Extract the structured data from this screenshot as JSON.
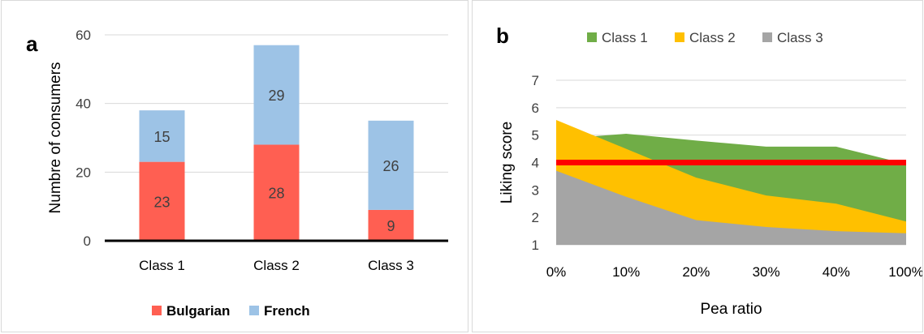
{
  "chart_data": [
    {
      "panel_label": "a",
      "type": "bar",
      "stacked": true,
      "categories": [
        "Class 1",
        "Class 2",
        "Class 3"
      ],
      "series": [
        {
          "name": "Bulgarian",
          "values": [
            23,
            28,
            9
          ],
          "color": "#ff5f52"
        },
        {
          "name": "French",
          "values": [
            15,
            29,
            26
          ],
          "color": "#9dc3e6"
        }
      ],
      "ylabel": "Numbre of consumers",
      "ylim": [
        0,
        60
      ],
      "yticks": [
        0,
        20,
        40,
        60
      ],
      "grid": true,
      "legend_position": "bottom"
    },
    {
      "panel_label": "b",
      "type": "area",
      "x": [
        "0%",
        "10%",
        "20%",
        "30%",
        "40%",
        "100%"
      ],
      "series": [
        {
          "name": "Class 1",
          "values": [
            4.85,
            5.05,
            4.8,
            4.58,
            4.58,
            3.95
          ],
          "color": "#70ad47"
        },
        {
          "name": "Class 2",
          "values": [
            5.55,
            4.5,
            3.45,
            2.8,
            2.5,
            1.85
          ],
          "color": "#ffc000"
        },
        {
          "name": "Class 3",
          "values": [
            3.7,
            2.75,
            1.9,
            1.65,
            1.5,
            1.42
          ],
          "color": "#a5a5a5"
        }
      ],
      "reference_line": {
        "value": 4,
        "color": "#ff0000"
      },
      "xlabel": "Pea ratio",
      "ylabel": "Liking score",
      "ylim": [
        1,
        7
      ],
      "yticks": [
        1,
        2,
        3,
        4,
        5,
        6,
        7
      ],
      "grid": true,
      "legend_position": "top"
    }
  ]
}
